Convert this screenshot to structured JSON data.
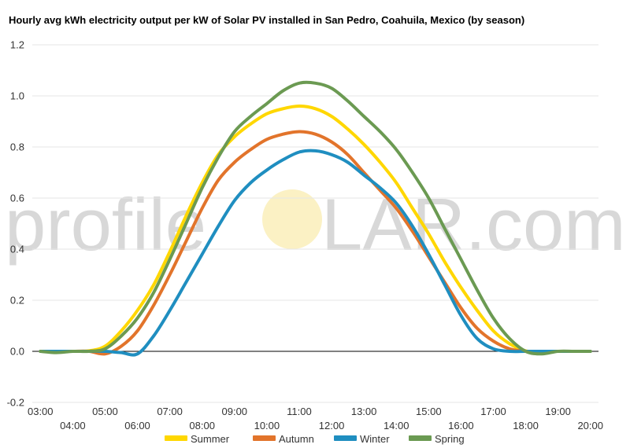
{
  "chart_data": {
    "type": "line",
    "title": "Hourly avg kWh electricity output per kW of Solar PV installed in San Pedro, Coahuila, Mexico (by season)",
    "watermark": {
      "left": "profile",
      "right": "LAR.com"
    },
    "xlabel": "",
    "ylabel": "",
    "x_ticks": [
      "03:00",
      "04:00",
      "05:00",
      "06:00",
      "07:00",
      "08:00",
      "09:00",
      "10:00",
      "11:00",
      "12:00",
      "13:00",
      "14:00",
      "15:00",
      "16:00",
      "17:00",
      "18:00",
      "19:00",
      "20:00"
    ],
    "y_ticks": [
      "1.2",
      "1.0",
      "0.8",
      "0.6",
      "0.4",
      "0.2",
      "0.0",
      "-0.2"
    ],
    "ylim": [
      -0.2,
      1.2
    ],
    "grid": true,
    "legend_position": "bottom",
    "x": [
      3,
      3.5,
      4,
      4.5,
      5,
      5.5,
      6,
      6.5,
      7,
      7.5,
      8,
      8.5,
      9,
      9.5,
      10,
      10.5,
      11,
      11.5,
      12,
      12.5,
      13,
      13.5,
      14,
      14.5,
      15,
      15.5,
      16,
      16.5,
      17,
      17.5,
      18,
      18.5,
      19,
      19.5,
      20
    ],
    "series": [
      {
        "name": "Summer",
        "color": "#ffd700",
        "values": [
          0,
          0,
          0,
          0.002,
          0.02,
          0.08,
          0.16,
          0.26,
          0.39,
          0.53,
          0.66,
          0.77,
          0.84,
          0.89,
          0.93,
          0.95,
          0.96,
          0.95,
          0.92,
          0.87,
          0.81,
          0.74,
          0.66,
          0.56,
          0.46,
          0.35,
          0.25,
          0.16,
          0.08,
          0.03,
          0.002,
          0,
          0,
          0,
          0
        ]
      },
      {
        "name": "Autumn",
        "color": "#e2742b",
        "values": [
          0,
          0,
          0,
          0,
          -0.01,
          0.02,
          0.08,
          0.18,
          0.3,
          0.43,
          0.56,
          0.67,
          0.74,
          0.79,
          0.83,
          0.85,
          0.86,
          0.85,
          0.82,
          0.77,
          0.7,
          0.63,
          0.56,
          0.47,
          0.37,
          0.27,
          0.17,
          0.09,
          0.04,
          0.01,
          0,
          0,
          0,
          0,
          0
        ]
      },
      {
        "name": "Winter",
        "color": "#1f8ec0",
        "values": [
          0,
          0,
          0,
          0,
          0,
          -0.005,
          -0.01,
          0.06,
          0.16,
          0.27,
          0.38,
          0.49,
          0.59,
          0.66,
          0.71,
          0.75,
          0.78,
          0.785,
          0.77,
          0.74,
          0.69,
          0.64,
          0.58,
          0.49,
          0.38,
          0.26,
          0.14,
          0.05,
          0.01,
          0,
          0,
          0,
          0,
          0,
          0
        ]
      },
      {
        "name": "Spring",
        "color": "#6b9a52",
        "values": [
          0,
          -0.005,
          0,
          0,
          0.01,
          0.06,
          0.13,
          0.23,
          0.36,
          0.5,
          0.64,
          0.76,
          0.86,
          0.92,
          0.97,
          1.02,
          1.05,
          1.05,
          1.03,
          0.98,
          0.92,
          0.86,
          0.79,
          0.7,
          0.6,
          0.48,
          0.36,
          0.24,
          0.13,
          0.05,
          0,
          -0.01,
          0,
          0,
          0
        ]
      }
    ]
  }
}
